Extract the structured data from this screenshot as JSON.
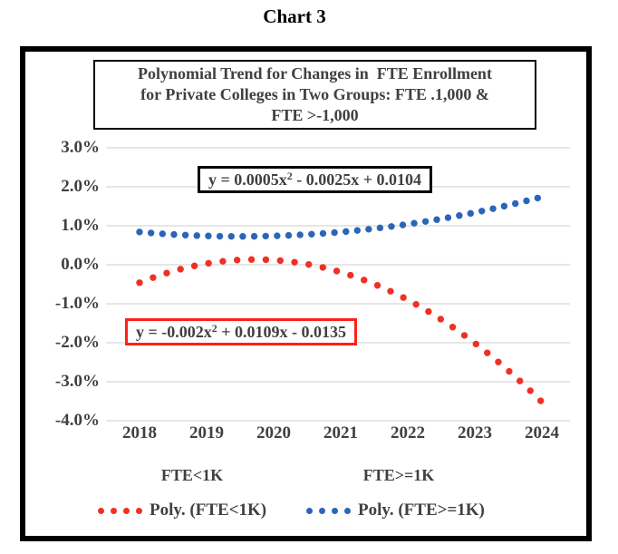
{
  "page": {
    "title": "Chart 3"
  },
  "chart": {
    "title_lines": [
      "Polynomial Trend for Changes in  FTE Enrollment",
      "for Private Colleges in Two Groups: FTE .1,000 &",
      "FTE >-1,000"
    ],
    "equation_boxes": {
      "fte_ge_1k": {
        "pre": "y = 0.0005x",
        "sup": "2",
        "post": " - 0.0025x + 0.0104"
      },
      "fte_lt_1k": {
        "pre": "y = -0.002x",
        "sup": "2",
        "post": " + 0.0109x - 0.0135"
      }
    },
    "colors": {
      "red_series": "#EE3124",
      "blue_series": "#2A66B8",
      "red_box_border": "#FF2015",
      "text": "#404040",
      "gridline": "#D6D6D6"
    }
  },
  "chart_data": {
    "type": "scatter",
    "title": "Polynomial Trend for Changes in  FTE Enrollment for Private Colleges in Two Groups: FTE .1,000 & FTE >-1,000",
    "x_categories": [
      "2018",
      "2019",
      "2020",
      "2021",
      "2022",
      "2023",
      "2024"
    ],
    "y_tick_labels": [
      "3.0%",
      "2.0%",
      "1.0%",
      "0.0%",
      "-1.0%",
      "-2.0%",
      "-3.0%",
      "-4.0%"
    ],
    "ylim_pct": [
      -4.0,
      3.0
    ],
    "grid": true,
    "legend_position": "bottom",
    "series": [
      {
        "name": "Poly. (FTE<1K)",
        "group_label": "FTE<1K",
        "color": "#EE3124",
        "style": "round-dot polynomial trendline",
        "equation": "y = -0.002x² + 0.0109x - 0.0135",
        "coefficients": {
          "a": -0.002,
          "b": 0.0109,
          "c": -0.0135
        },
        "x_domain": [
          1,
          7
        ],
        "values_by_year": {
          "2018": -0.0046,
          "2019": 0.0003,
          "2020": 0.0012,
          "2021": -0.0019,
          "2022": -0.009,
          "2023": -0.0201,
          "2024": -0.0352
        }
      },
      {
        "name": "Poly. (FTE>=1K)",
        "group_label": "FTE>=1K",
        "color": "#2A66B8",
        "style": "round-dot polynomial trendline",
        "equation": "y = 0.0005x² - 0.0025x + 0.0104",
        "coefficients": {
          "a": 0.0005,
          "b": -0.0025,
          "c": 0.0104
        },
        "x_domain": [
          1,
          7
        ],
        "values_by_year": {
          "2018": 0.0084,
          "2019": 0.0074,
          "2020": 0.0074,
          "2021": 0.0084,
          "2022": 0.0104,
          "2023": 0.0134,
          "2024": 0.0174
        }
      }
    ],
    "legend": {
      "row1": [
        "FTE<1K",
        "FTE>=1K"
      ],
      "row2": [
        "Poly. (FTE<1K)",
        "Poly. (FTE>=1K)"
      ]
    }
  }
}
